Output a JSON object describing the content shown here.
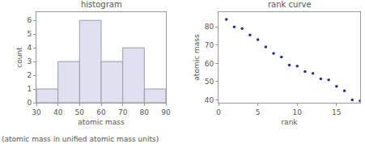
{
  "chart_data": [
    {
      "type": "histogram",
      "title": "histogram",
      "x_label": "atomic mass",
      "y_label": "count",
      "bins": [
        30,
        40,
        50,
        60,
        70,
        80,
        90
      ],
      "counts": [
        1,
        3,
        6,
        3,
        4,
        1
      ],
      "color": "#e0e0f0",
      "xlim": [
        30,
        90
      ],
      "xticks": [
        30,
        40,
        50,
        60,
        70,
        80,
        90
      ],
      "ylim": [
        0,
        6.6
      ],
      "yticks": [
        0,
        1,
        2,
        3,
        4,
        5,
        6
      ],
      "grid": false
    },
    {
      "type": "scatter",
      "title": "rank curve",
      "x_label": "rank",
      "y_label": "atomic mass",
      "x": [
        1,
        2,
        3,
        4,
        5,
        6,
        7,
        8,
        9,
        10,
        11,
        12,
        13,
        14,
        15,
        16,
        17,
        18
      ],
      "values": [
        84,
        79.9,
        79,
        75.5,
        73,
        69,
        65.5,
        63.5,
        59,
        58.5,
        55.5,
        54.5,
        51.5,
        51,
        47.5,
        45,
        40,
        39.5
      ],
      "color": "#2b2f8c",
      "marker": "circle",
      "xlim": [
        0,
        18
      ],
      "xticks": [
        0,
        5,
        10,
        15
      ],
      "ylim": [
        38.5,
        88
      ],
      "yticks": [
        40,
        50,
        60,
        70,
        80
      ],
      "grid": false
    }
  ],
  "caption": "(atomic mass in unified atomic mass units)"
}
